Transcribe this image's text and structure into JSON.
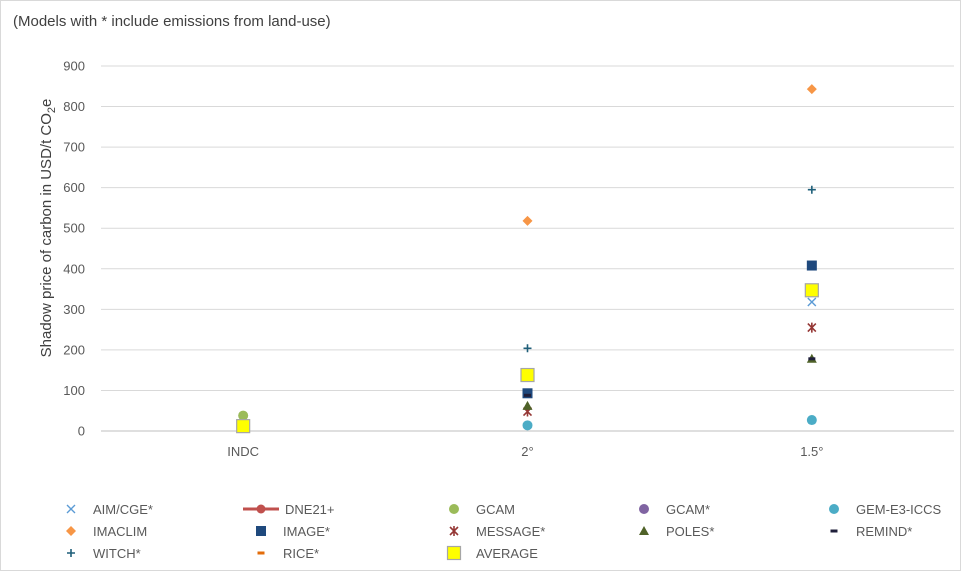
{
  "chart_data": {
    "type": "scatter",
    "annotation": "(Models with * include emissions from land-use)",
    "ylabel": "Shadow price of carbon in USD/t CO",
    "ylabel_subscript": "2",
    "ylabel_suffix": "e",
    "categories": [
      "INDC",
      "2°",
      "1.5°"
    ],
    "ylim": [
      0,
      900
    ],
    "yticks": [
      0,
      100,
      200,
      300,
      400,
      500,
      600,
      700,
      800,
      900
    ],
    "grid": true,
    "legend_position": "bottom",
    "series": [
      {
        "name": "AIM/CGE*",
        "marker": "x",
        "color": "#5b9bd5",
        "values": [
          null,
          null,
          318
        ]
      },
      {
        "name": "DNE21+",
        "marker": "line-circle",
        "color": "#c0504d",
        "values": [
          null,
          null,
          null
        ]
      },
      {
        "name": "GCAM",
        "marker": "circle",
        "color": "#9bbb59",
        "values": [
          38,
          null,
          null
        ]
      },
      {
        "name": "GCAM*",
        "marker": "circle",
        "color": "#8064a2",
        "values": [
          null,
          null,
          null
        ]
      },
      {
        "name": "GEM-E3-ICCS",
        "marker": "circle",
        "color": "#4bacc6",
        "values": [
          null,
          14,
          27
        ]
      },
      {
        "name": "IMACLIM",
        "marker": "diamond",
        "color": "#f79646",
        "values": [
          null,
          518,
          843
        ]
      },
      {
        "name": "IMAGE*",
        "marker": "square",
        "color": "#1f497d",
        "values": [
          null,
          93,
          408
        ]
      },
      {
        "name": "MESSAGE*",
        "marker": "star",
        "color": "#953735",
        "values": [
          null,
          48,
          255
        ]
      },
      {
        "name": "POLES*",
        "marker": "triangle",
        "color": "#4f6228",
        "values": [
          null,
          62,
          178
        ]
      },
      {
        "name": "REMIND*",
        "marker": "dash",
        "color": "#1f1f3a",
        "values": [
          null,
          88,
          178
        ]
      },
      {
        "name": "WITCH*",
        "marker": "plus",
        "color": "#1f5f7a",
        "values": [
          null,
          204,
          595
        ]
      },
      {
        "name": "RICE*",
        "marker": "dash",
        "color": "#e36c0a",
        "values": [
          null,
          null,
          null
        ]
      },
      {
        "name": "AVERAGE",
        "marker": "square-large",
        "color": "#ffff00",
        "values": [
          12,
          138,
          347
        ]
      }
    ]
  }
}
